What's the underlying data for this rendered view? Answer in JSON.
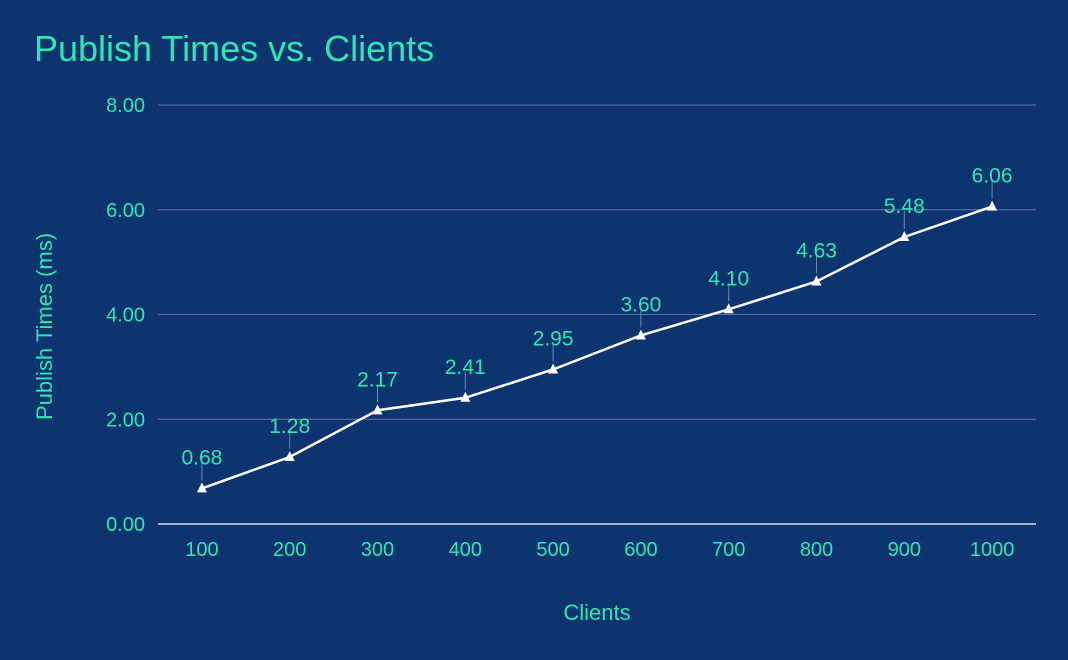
{
  "chart_data": {
    "type": "line",
    "title": "Publish Times vs. Clients",
    "xlabel": "Clients",
    "ylabel": "Publish Times (ms)",
    "categories": [
      "100",
      "200",
      "300",
      "400",
      "500",
      "600",
      "700",
      "800",
      "900",
      "1000"
    ],
    "series": [
      {
        "values": [
          0.68,
          1.28,
          2.17,
          2.41,
          2.95,
          3.6,
          4.1,
          4.63,
          5.48,
          6.06
        ],
        "value_labels": [
          "0.68",
          "1.28",
          "2.17",
          "2.41",
          "2.95",
          "3.60",
          "4.10",
          "4.63",
          "5.48",
          "6.06"
        ],
        "color": "#ffffff",
        "marker": "triangle"
      }
    ],
    "ylim": [
      0,
      8
    ],
    "yticks": [
      "0.00",
      "2.00",
      "4.00",
      "6.00",
      "8.00"
    ],
    "grid": true,
    "legend": "none",
    "colors": {
      "background": "#0e3470",
      "text": "#2ee6b0",
      "gridline": "#5a78a6",
      "line": "#ffffff"
    }
  }
}
